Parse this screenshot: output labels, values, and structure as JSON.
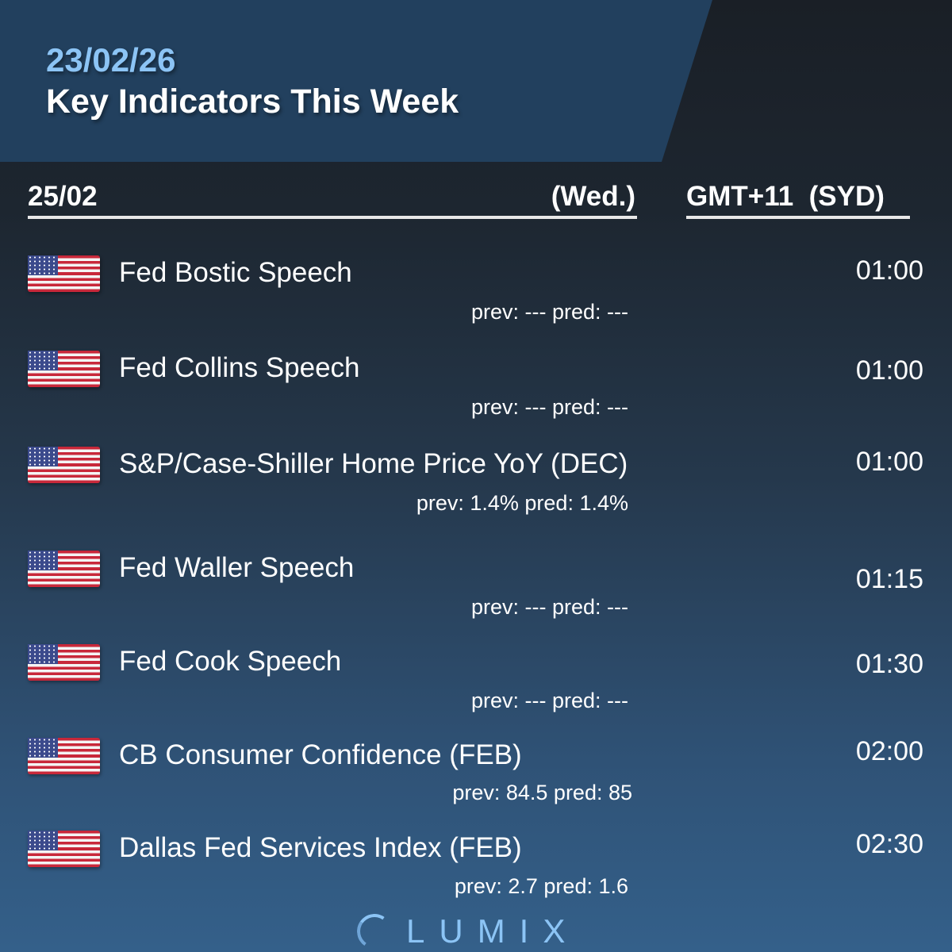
{
  "header": {
    "date": "23/02/26",
    "title": "Key Indicators This Week"
  },
  "day": {
    "date": "25/02",
    "weekday": "(Wed.)",
    "timezone": "GMT+11  (SYD)"
  },
  "events": [
    {
      "country": "US",
      "name": "Fed Bostic Speech",
      "time": "01:00",
      "prev_pred": "prev: --- pred: ---"
    },
    {
      "country": "US",
      "name": "Fed Collins Speech",
      "time": "01:00",
      "prev_pred": "prev: --- pred: ---"
    },
    {
      "country": "US",
      "name": "S&P/Case-Shiller Home Price YoY (DEC)",
      "time": "01:00",
      "prev_pred": "prev: 1.4% pred: 1.4%"
    },
    {
      "country": "US",
      "name": "Fed Waller Speech",
      "time": "01:15",
      "prev_pred": "prev: --- pred: ---"
    },
    {
      "country": "US",
      "name": "Fed Cook Speech",
      "time": "01:30",
      "prev_pred": "prev: --- pred: ---"
    },
    {
      "country": "US",
      "name": "CB Consumer Confidence (FEB)",
      "time": "02:00",
      "prev_pred": "prev: 84.5 pred: 85"
    },
    {
      "country": "US",
      "name": "Dallas Fed Services Index (FEB)",
      "time": "02:30",
      "prev_pred": "prev: 2.7 pred: 1.6"
    }
  ],
  "brand": {
    "name": "LUMIX",
    "accent": "#8cc4f5"
  }
}
